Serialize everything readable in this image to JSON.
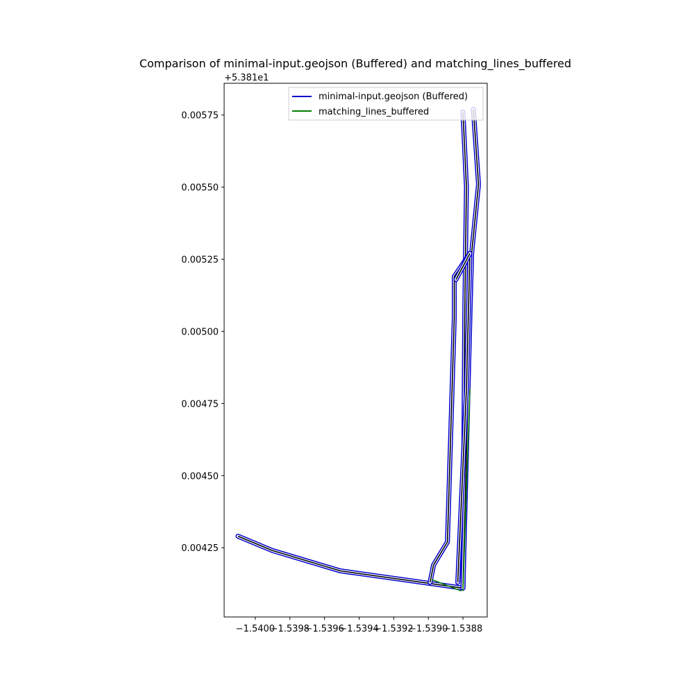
{
  "chart_data": {
    "type": "line",
    "title": "Comparison of minimal-input.geojson (Buffered) and matching_lines_buffered",
    "xlabel": "",
    "ylabel": "",
    "x_ticks": [
      "−1.5400",
      "−1.5398",
      "−1.5396",
      "−1.5394",
      "−1.5392",
      "−1.5390",
      "−1.5388"
    ],
    "y_ticks": [
      "0.00425",
      "0.00450",
      "0.00475",
      "0.00500",
      "0.00525",
      "0.00550",
      "0.00575"
    ],
    "y_offset_label": "+5.381e1",
    "xlim": [
      -1.54018,
      -1.53866
    ],
    "ylim": [
      53.81401,
      53.81586
    ],
    "grid": false,
    "legend_position": "top-right",
    "legend": [
      {
        "label": "minimal-input.geojson (Buffered)",
        "color": "#0000cc"
      },
      {
        "label": "matching_lines_buffered",
        "color": "#008000"
      }
    ],
    "series": [
      {
        "name": "minimal-input.geojson (Buffered)",
        "color": "#0000cc",
        "paths": [
          [
            [
              -1.5401,
              53.81429
            ],
            [
              -1.5399,
              53.81424
            ],
            [
              -1.53951,
              53.81417
            ],
            [
              -1.5388,
              53.81411
            ],
            [
              -1.53879,
              53.81505
            ],
            [
              -1.53878,
              53.8155
            ],
            [
              -1.5388,
              53.81576
            ]
          ],
          [
            [
              -1.5388,
              53.81411
            ],
            [
              -1.53876,
              53.81505
            ],
            [
              -1.53875,
              53.81527
            ],
            [
              -1.53871,
              53.81551
            ],
            [
              -1.53874,
              53.81577
            ]
          ],
          [
            [
              -1.53883,
              53.81413
            ],
            [
              -1.53878,
              53.8148
            ],
            [
              -1.53876,
              53.81527
            ],
            [
              -1.53885,
              53.81519
            ],
            [
              -1.53885,
              53.81505
            ],
            [
              -1.53889,
              53.81427
            ],
            [
              -1.53897,
              53.81419
            ],
            [
              -1.53899,
              53.81413
            ]
          ],
          [
            [
              -1.53876,
              53.81527
            ],
            [
              -1.53884,
              53.81518
            ]
          ]
        ]
      },
      {
        "name": "matching_lines_buffered",
        "color": "#008000",
        "paths": [
          [
            [
              -1.53898,
              53.81414
            ],
            [
              -1.53881,
              53.8141
            ]
          ],
          [
            [
              -1.53876,
              53.8148
            ],
            [
              -1.5388,
              53.8141
            ]
          ]
        ]
      }
    ]
  }
}
